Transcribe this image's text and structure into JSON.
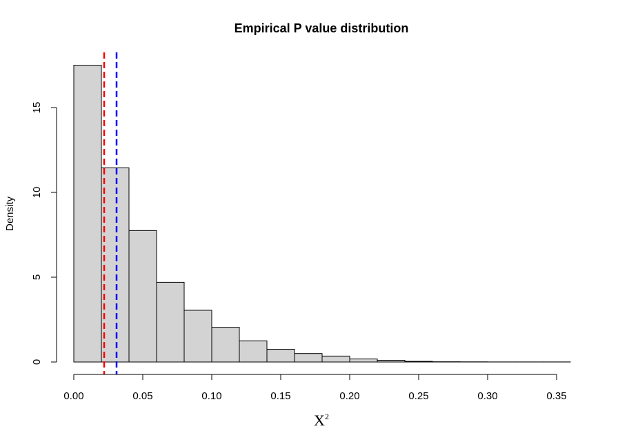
{
  "chart_data": {
    "type": "bar",
    "title": "Empirical P value distribution",
    "xlabel": "X",
    "xlabel_superscript": "2",
    "ylabel": "Density",
    "xlim": [
      0,
      0.36
    ],
    "ylim": [
      0,
      17.5
    ],
    "x_ticks": [
      0.0,
      0.05,
      0.1,
      0.15,
      0.2,
      0.25,
      0.3,
      0.35
    ],
    "x_tick_labels": [
      "0.00",
      "0.05",
      "0.10",
      "0.15",
      "0.20",
      "0.25",
      "0.30",
      "0.35"
    ],
    "y_ticks": [
      0,
      5,
      10,
      15
    ],
    "y_tick_labels": [
      "0",
      "5",
      "10",
      "15"
    ],
    "bin_edges": [
      0.0,
      0.02,
      0.04,
      0.06,
      0.08,
      0.1,
      0.12,
      0.14,
      0.16,
      0.18,
      0.2,
      0.22,
      0.24,
      0.26,
      0.28,
      0.3,
      0.32,
      0.34,
      0.36
    ],
    "values": [
      17.5,
      11.45,
      7.75,
      4.7,
      3.05,
      2.05,
      1.25,
      0.75,
      0.5,
      0.35,
      0.18,
      0.1,
      0.04,
      0.015,
      0.01,
      0.005,
      0.005,
      0.005
    ],
    "bar_color": "#D3D3D3",
    "reference_lines": [
      {
        "x": 0.022,
        "color": "#FF0000",
        "style": "dashed"
      },
      {
        "x": 0.031,
        "color": "#0000FF",
        "style": "dashed"
      }
    ],
    "grid": false,
    "legend": "none"
  }
}
